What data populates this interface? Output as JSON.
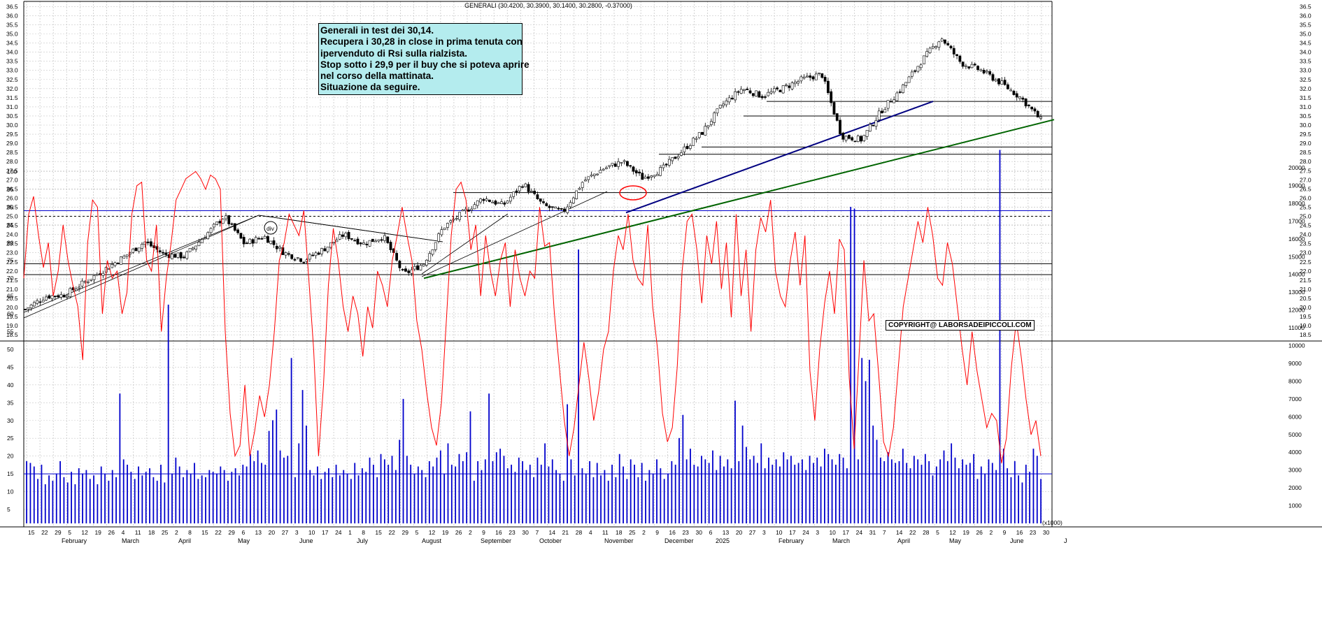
{
  "header": {
    "title": "GENERALI (30.4200, 30.3900, 30.1400, 30.2800, -0.37000)"
  },
  "note": {
    "lines": [
      "Generali in test dei 30,14.",
      "Recupera i 30,28 in close in prima tenuta con",
      "ipervenduto di Rsi sulla rialzista.",
      "Stop sotto i 29,9 per il buy che si poteva aprire",
      "nel corso della mattinata.",
      "Situazione da seguire."
    ]
  },
  "copyright": "COPYRIGHT@ LABORSADEIPICCOLI.COM",
  "annotations": {
    "div_label": "div"
  },
  "colors": {
    "grid": "#c8c8c8",
    "price": "#000000",
    "rsi": "#ff0000",
    "volume": "#0000cc",
    "trend_blue": "#000080",
    "trend_green": "#006400",
    "ellipse": "#ff0000",
    "note_bg": "#b4ecee"
  },
  "chart_data": [
    {
      "type": "candlestick",
      "title": "GENERALI (30.4200, 30.3900, 30.1400, 30.2800, -0.37000)",
      "ylim": [
        18.0,
        36.6
      ],
      "y_ticks": [
        "18.5",
        "19.0",
        "19.5",
        "20.0",
        "20.5",
        "21.0",
        "21.5",
        "22.0",
        "22.5",
        "23.0",
        "23.5",
        "24.0",
        "24.5",
        "25.0",
        "25.5",
        "26.0",
        "26.5",
        "27.0",
        "27.5",
        "28.0",
        "28.5",
        "29.0",
        "29.5",
        "30.0",
        "30.5",
        "31.0",
        "31.5",
        "32.0",
        "32.5",
        "33.0",
        "33.5",
        "34.0",
        "34.5",
        "35.0",
        "35.5",
        "36.0",
        "36.5"
      ],
      "x_ticks": [
        "15",
        "22",
        "29",
        "5",
        "12",
        "19",
        "26",
        "4",
        "11",
        "18",
        "25",
        "2",
        "8",
        "15",
        "22",
        "29",
        "6",
        "13",
        "20",
        "27",
        "3",
        "10",
        "17",
        "24",
        "1",
        "8",
        "15",
        "22",
        "29",
        "5",
        "12",
        "19",
        "26",
        "2",
        "9",
        "16",
        "23",
        "30",
        "7",
        "14",
        "21",
        "28",
        "4",
        "11",
        "18",
        "25",
        "2",
        "9",
        "16",
        "23",
        "30",
        "6",
        "13",
        "20",
        "27",
        "3",
        "10",
        "17",
        "24",
        "3",
        "10",
        "17",
        "24",
        "31",
        "7",
        "14",
        "22",
        "28",
        "5",
        "12",
        "19",
        "26",
        "2",
        "9",
        "16",
        "23",
        "30"
      ],
      "x_ticks_year": "2025",
      "months": [
        "February",
        "March",
        "April",
        "May",
        "June",
        "July",
        "August",
        "September",
        "October",
        "November",
        "December",
        "February",
        "March",
        "April",
        "May",
        "June",
        "J"
      ],
      "close_series": [
        {
          "label": "15",
          "close": 19.9
        },
        {
          "label": "29",
          "close": 20.6
        },
        {
          "label": "12",
          "close": 20.7
        },
        {
          "label": "19",
          "close": 21.4
        },
        {
          "label": "26",
          "close": 22.1
        },
        {
          "label": "11",
          "close": 22.8
        },
        {
          "label": "25",
          "close": 23.6
        },
        {
          "label": "8",
          "close": 22.9
        },
        {
          "label": "22",
          "close": 22.8
        },
        {
          "label": "6",
          "close": 23.9
        },
        {
          "label": "13",
          "close": 25.0
        },
        {
          "label": "20",
          "close": 23.5
        },
        {
          "label": "3",
          "close": 23.9
        },
        {
          "label": "10",
          "close": 23.0
        },
        {
          "label": "17",
          "close": 22.6
        },
        {
          "label": "24",
          "close": 23.2
        },
        {
          "label": "8",
          "close": 24.0
        },
        {
          "label": "22",
          "close": 23.5
        },
        {
          "label": "29",
          "close": 23.9
        },
        {
          "label": "5",
          "close": 21.8
        },
        {
          "label": "12",
          "close": 22.4
        },
        {
          "label": "26",
          "close": 24.4
        },
        {
          "label": "9",
          "close": 25.2
        },
        {
          "label": "23",
          "close": 26.0
        },
        {
          "label": "7",
          "close": 25.6
        },
        {
          "label": "21",
          "close": 26.8
        },
        {
          "label": "4",
          "close": 25.6
        },
        {
          "label": "11",
          "close": 25.2
        },
        {
          "label": "18",
          "close": 26.9
        },
        {
          "label": "2",
          "close": 27.6
        },
        {
          "label": "16",
          "close": 28.0
        },
        {
          "label": "23",
          "close": 27.1
        },
        {
          "label": "30",
          "close": 27.6
        },
        {
          "label": "13",
          "close": 28.6
        },
        {
          "label": "27",
          "close": 29.6
        },
        {
          "label": "3",
          "close": 31.1
        },
        {
          "label": "17",
          "close": 32.0
        },
        {
          "label": "24",
          "close": 31.6
        },
        {
          "label": "3",
          "close": 32.0
        },
        {
          "label": "17",
          "close": 32.5
        },
        {
          "label": "31",
          "close": 32.8
        },
        {
          "label": "7",
          "close": 29.4
        },
        {
          "label": "14",
          "close": 29.2
        },
        {
          "label": "22",
          "close": 30.8
        },
        {
          "label": "28",
          "close": 32.0
        },
        {
          "label": "5",
          "close": 33.5
        },
        {
          "label": "12",
          "close": 34.8
        },
        {
          "label": "19",
          "close": 33.4
        },
        {
          "label": "26",
          "close": 33.0
        },
        {
          "label": "2",
          "close": 32.3
        },
        {
          "label": "9",
          "close": 31.5
        },
        {
          "label": "16",
          "close": 30.28
        }
      ],
      "horizontal_levels": [
        21.8,
        22.4,
        25.0,
        26.3,
        28.4,
        28.8,
        30.5,
        31.3
      ],
      "trendlines": [
        {
          "color": "green",
          "from": {
            "date": "August 5",
            "price": 21.6
          },
          "to": {
            "date": "June 19",
            "price": 30.2
          }
        },
        {
          "color": "blue",
          "from": {
            "date": "November 11",
            "price": 25.2
          },
          "to": {
            "date": "April 14",
            "price": 31.3
          }
        }
      ],
      "annotations": [
        "div"
      ]
    },
    {
      "type": "line",
      "name": "RSI",
      "ylim": [
        5,
        100
      ],
      "y_ticks": [
        "5",
        "10",
        "15",
        "20",
        "25",
        "30",
        "35",
        "40",
        "45",
        "50",
        "55",
        "60",
        "65",
        "70",
        "75",
        "80",
        "85",
        "90",
        "95",
        "100"
      ],
      "levels": [
        15,
        89
      ],
      "values": [
        70,
        88,
        93,
        82,
        73,
        80,
        65,
        72,
        85,
        75,
        68,
        62,
        47,
        80,
        92,
        90,
        60,
        75,
        70,
        72,
        60,
        66,
        88,
        96,
        97,
        75,
        72,
        85,
        55,
        70,
        80,
        92,
        95,
        98,
        99,
        100,
        98,
        95,
        99,
        98,
        95,
        55,
        32,
        20,
        23,
        40,
        20,
        27,
        37,
        31,
        40,
        55,
        75,
        80,
        88,
        85,
        82,
        89,
        70,
        50,
        20,
        40,
        68,
        84,
        75,
        62,
        55,
        65,
        60,
        48,
        62,
        56,
        72,
        68,
        62,
        75,
        82,
        90,
        82,
        75,
        58,
        50,
        38,
        28,
        23,
        35,
        58,
        82,
        95,
        97,
        92,
        78,
        85,
        65,
        82,
        72,
        65,
        75,
        80,
        62,
        78,
        70,
        65,
        72,
        70,
        90,
        79,
        80,
        60,
        45,
        30,
        20,
        28,
        40,
        52,
        42,
        30,
        38,
        50,
        55,
        72,
        82,
        78,
        88,
        75,
        70,
        68,
        85,
        62,
        50,
        32,
        24,
        28,
        45,
        72,
        86,
        88,
        78,
        63,
        82,
        74,
        86,
        67,
        80,
        59,
        88,
        65,
        78,
        55,
        78,
        87,
        83,
        92,
        72,
        65,
        62,
        75,
        83,
        68,
        82,
        44,
        30,
        50,
        63,
        72,
        60,
        81,
        78,
        42,
        22,
        48,
        75,
        58,
        60,
        43,
        24,
        20,
        28,
        45,
        62,
        70,
        78,
        86,
        80,
        90,
        82,
        70,
        68,
        80,
        74,
        62,
        50,
        40,
        55,
        44,
        36,
        28,
        32,
        30,
        18,
        25,
        45,
        58,
        48,
        36,
        26,
        30,
        20
      ]
    },
    {
      "type": "bar",
      "name": "Volume",
      "ylim": [
        0,
        21000
      ],
      "y_ticks": [
        "1000",
        "2000",
        "3000",
        "4000",
        "5000",
        "6000",
        "7000",
        "8000",
        "9000",
        "10000",
        "11000",
        "12000",
        "13000",
        "14000",
        "15000",
        "16000",
        "17000",
        "18000",
        "19000",
        "20000"
      ],
      "scale_label": "(x1000)",
      "values": [
        3500,
        3400,
        3200,
        2500,
        3300,
        2200,
        2700,
        2400,
        2800,
        3500,
        2600,
        2300,
        2900,
        2200,
        3100,
        2800,
        3000,
        2500,
        2700,
        2200,
        3200,
        2800,
        2400,
        3000,
        2600,
        7300,
        3600,
        3300,
        2900,
        2500,
        3200,
        2700,
        2900,
        3100,
        2600,
        2400,
        3300,
        2300,
        12300,
        2800,
        3700,
        3200,
        2600,
        3000,
        2800,
        3400,
        2500,
        2700,
        2600,
        3000,
        2900,
        2800,
        3200,
        3000,
        2400,
        2900,
        3100,
        2700,
        3300,
        3200,
        3900,
        3500,
        4100,
        3400,
        3300,
        5200,
        5800,
        6400,
        4100,
        3700,
        3800,
        9300,
        2600,
        4500,
        7500,
        5500,
        3000,
        2700,
        3200,
        2500,
        2900,
        3100,
        2600,
        3300,
        2700,
        3000,
        2800,
        2500,
        3400,
        2700,
        3100,
        2900,
        3700,
        3300,
        2600,
        3900,
        3600,
        3300,
        3800,
        3000,
        4700,
        7000,
        3800,
        3300,
        2800,
        3200,
        3000,
        2600,
        3500,
        3200,
        3700,
        4100,
        2800,
        4500,
        3300,
        3200,
        3900,
        3500,
        4000,
        6300,
        2400,
        3500,
        3000,
        3600,
        7300,
        3500,
        4000,
        4200,
        3800,
        3100,
        3300,
        2900,
        3700,
        3500,
        3000,
        3300,
        2600,
        3700,
        3300,
        4500,
        3200,
        3600,
        3000,
        2800,
        2400,
        6700,
        3600,
        2700,
        15400,
        3100,
        2800,
        3500,
        2600,
        3400,
        2700,
        3000,
        2400,
        3300,
        2600,
        3900,
        3200,
        2500,
        3600,
        3300,
        2600,
        3400,
        2400,
        3000,
        2800,
        3600,
        3100,
        2500,
        2800,
        3500,
        3300,
        4800,
        6100,
        3600,
        4200,
        3300,
        3200,
        3800,
        3600,
        3400,
        4100,
        3000,
        3800,
        3200,
        3600,
        3100,
        6900,
        3500,
        5500,
        4300,
        3600,
        3800,
        3400,
        4500,
        3100,
        3700,
        3300,
        3600,
        3200,
        4000,
        3600,
        3800,
        3300,
        3400,
        3600,
        3000,
        3800,
        3400,
        3700,
        3200,
        4200,
        3900,
        3600,
        3300,
        3900,
        3700,
        3100,
        17800,
        17700,
        3600,
        9300,
        8000,
        9200,
        5500,
        4700,
        3700,
        3500,
        4000,
        3600,
        3400,
        3500,
        4200,
        3400,
        3100,
        3800,
        3600,
        3300,
        3900,
        3500,
        2700,
        3200,
        3600,
        4100,
        3500,
        4500,
        3700,
        3100,
        3600,
        3300,
        3400,
        3900,
        2500,
        3200,
        2800,
        3600,
        3400,
        3000,
        21000,
        4200,
        3100,
        2600,
        3500,
        2700,
        2300,
        3300,
        2900,
        4200,
        3800,
        2500
      ]
    }
  ]
}
